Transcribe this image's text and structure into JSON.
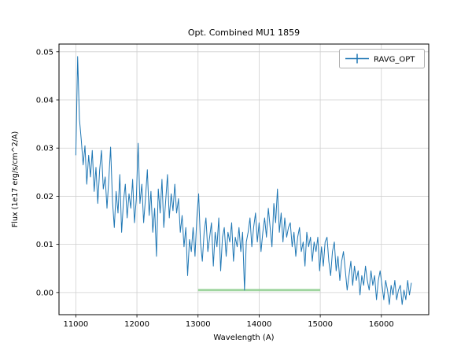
{
  "figure": {
    "background": "#ffffff"
  },
  "chart_data": {
    "type": "line",
    "title": "Opt. Combined MU1 1859",
    "xlabel": "Wavelength (A)",
    "ylabel": "Flux (1e17 erg/s/cm^2/A)",
    "grid": true,
    "grid_color": "#cfcfcf",
    "legend_position": "upper right",
    "xlim": [
      10725,
      16775
    ],
    "ylim": [
      -0.0046,
      0.0516
    ],
    "x_ticks": [
      11000,
      12000,
      13000,
      14000,
      15000,
      16000
    ],
    "y_ticks": [
      0.0,
      0.01,
      0.02,
      0.03,
      0.04,
      0.05
    ],
    "reference_line": {
      "x_start": 13000,
      "x_end": 15000,
      "y": 0.0005,
      "color": "#8fce8f"
    },
    "series": [
      {
        "name": "RAVG_OPT",
        "color": "#1f77b4",
        "marker": "errorbar-plus",
        "x_start": 11000,
        "x_step": 30,
        "values": [
          0.0285,
          0.049,
          0.036,
          0.0315,
          0.0265,
          0.0305,
          0.0225,
          0.0285,
          0.024,
          0.0295,
          0.021,
          0.026,
          0.0185,
          0.0255,
          0.0295,
          0.0215,
          0.024,
          0.0175,
          0.0235,
          0.0302,
          0.019,
          0.0135,
          0.021,
          0.0165,
          0.0245,
          0.0125,
          0.019,
          0.0225,
          0.0155,
          0.0205,
          0.0175,
          0.0235,
          0.0145,
          0.0195,
          0.031,
          0.0185,
          0.0225,
          0.0145,
          0.0195,
          0.0255,
          0.016,
          0.021,
          0.0125,
          0.0175,
          0.0075,
          0.0215,
          0.0165,
          0.0235,
          0.0135,
          0.019,
          0.0245,
          0.0155,
          0.0205,
          0.017,
          0.0225,
          0.0165,
          0.0195,
          0.0125,
          0.016,
          0.0095,
          0.0135,
          0.0035,
          0.011,
          0.0085,
          0.0135,
          0.0075,
          0.0155,
          0.0205,
          0.0105,
          0.0065,
          0.0125,
          0.0155,
          0.0085,
          0.0115,
          0.0145,
          0.0055,
          0.0125,
          0.0095,
          0.0155,
          0.0045,
          0.0115,
          0.0135,
          0.0075,
          0.0125,
          0.0105,
          0.0145,
          0.0065,
          0.0115,
          0.0095,
          0.0135,
          0.0085,
          0.0125,
          0.0005,
          0.0105,
          0.0125,
          0.0155,
          0.0095,
          0.0135,
          0.0165,
          0.0105,
          0.0145,
          0.0085,
          0.0125,
          0.0155,
          0.0115,
          0.0175,
          0.0135,
          0.0095,
          0.0185,
          0.0145,
          0.0215,
          0.0125,
          0.0165,
          0.0105,
          0.0155,
          0.0115,
          0.0135,
          0.0145,
          0.0095,
          0.0125,
          0.0075,
          0.0115,
          0.0135,
          0.0085,
          0.0105,
          0.0055,
          0.0125,
          0.0095,
          0.0115,
          0.0065,
          0.0105,
          0.0085,
          0.0115,
          0.0045,
          0.0095,
          0.0055,
          0.0105,
          0.0115,
          0.0065,
          0.0035,
          0.0085,
          0.0105,
          0.0045,
          0.0075,
          0.0025,
          0.0065,
          0.0085,
          0.0045,
          0.0005,
          0.0035,
          0.0065,
          0.0015,
          0.0055,
          0.0025,
          0.0045,
          -0.0005,
          0.0035,
          0.0015,
          0.0055,
          0.0025,
          0.0005,
          0.0045,
          0.0015,
          0.0035,
          -0.0015,
          0.0025,
          0.0045,
          0.0015,
          -0.0015,
          0.0025,
          0.0005,
          -0.0025,
          0.0015,
          -0.0005,
          0.0025,
          -0.0015,
          0.0005,
          0.0015,
          -0.0025,
          0.0005,
          -0.0015,
          0.0025,
          -0.0005,
          0.002
        ]
      }
    ]
  }
}
